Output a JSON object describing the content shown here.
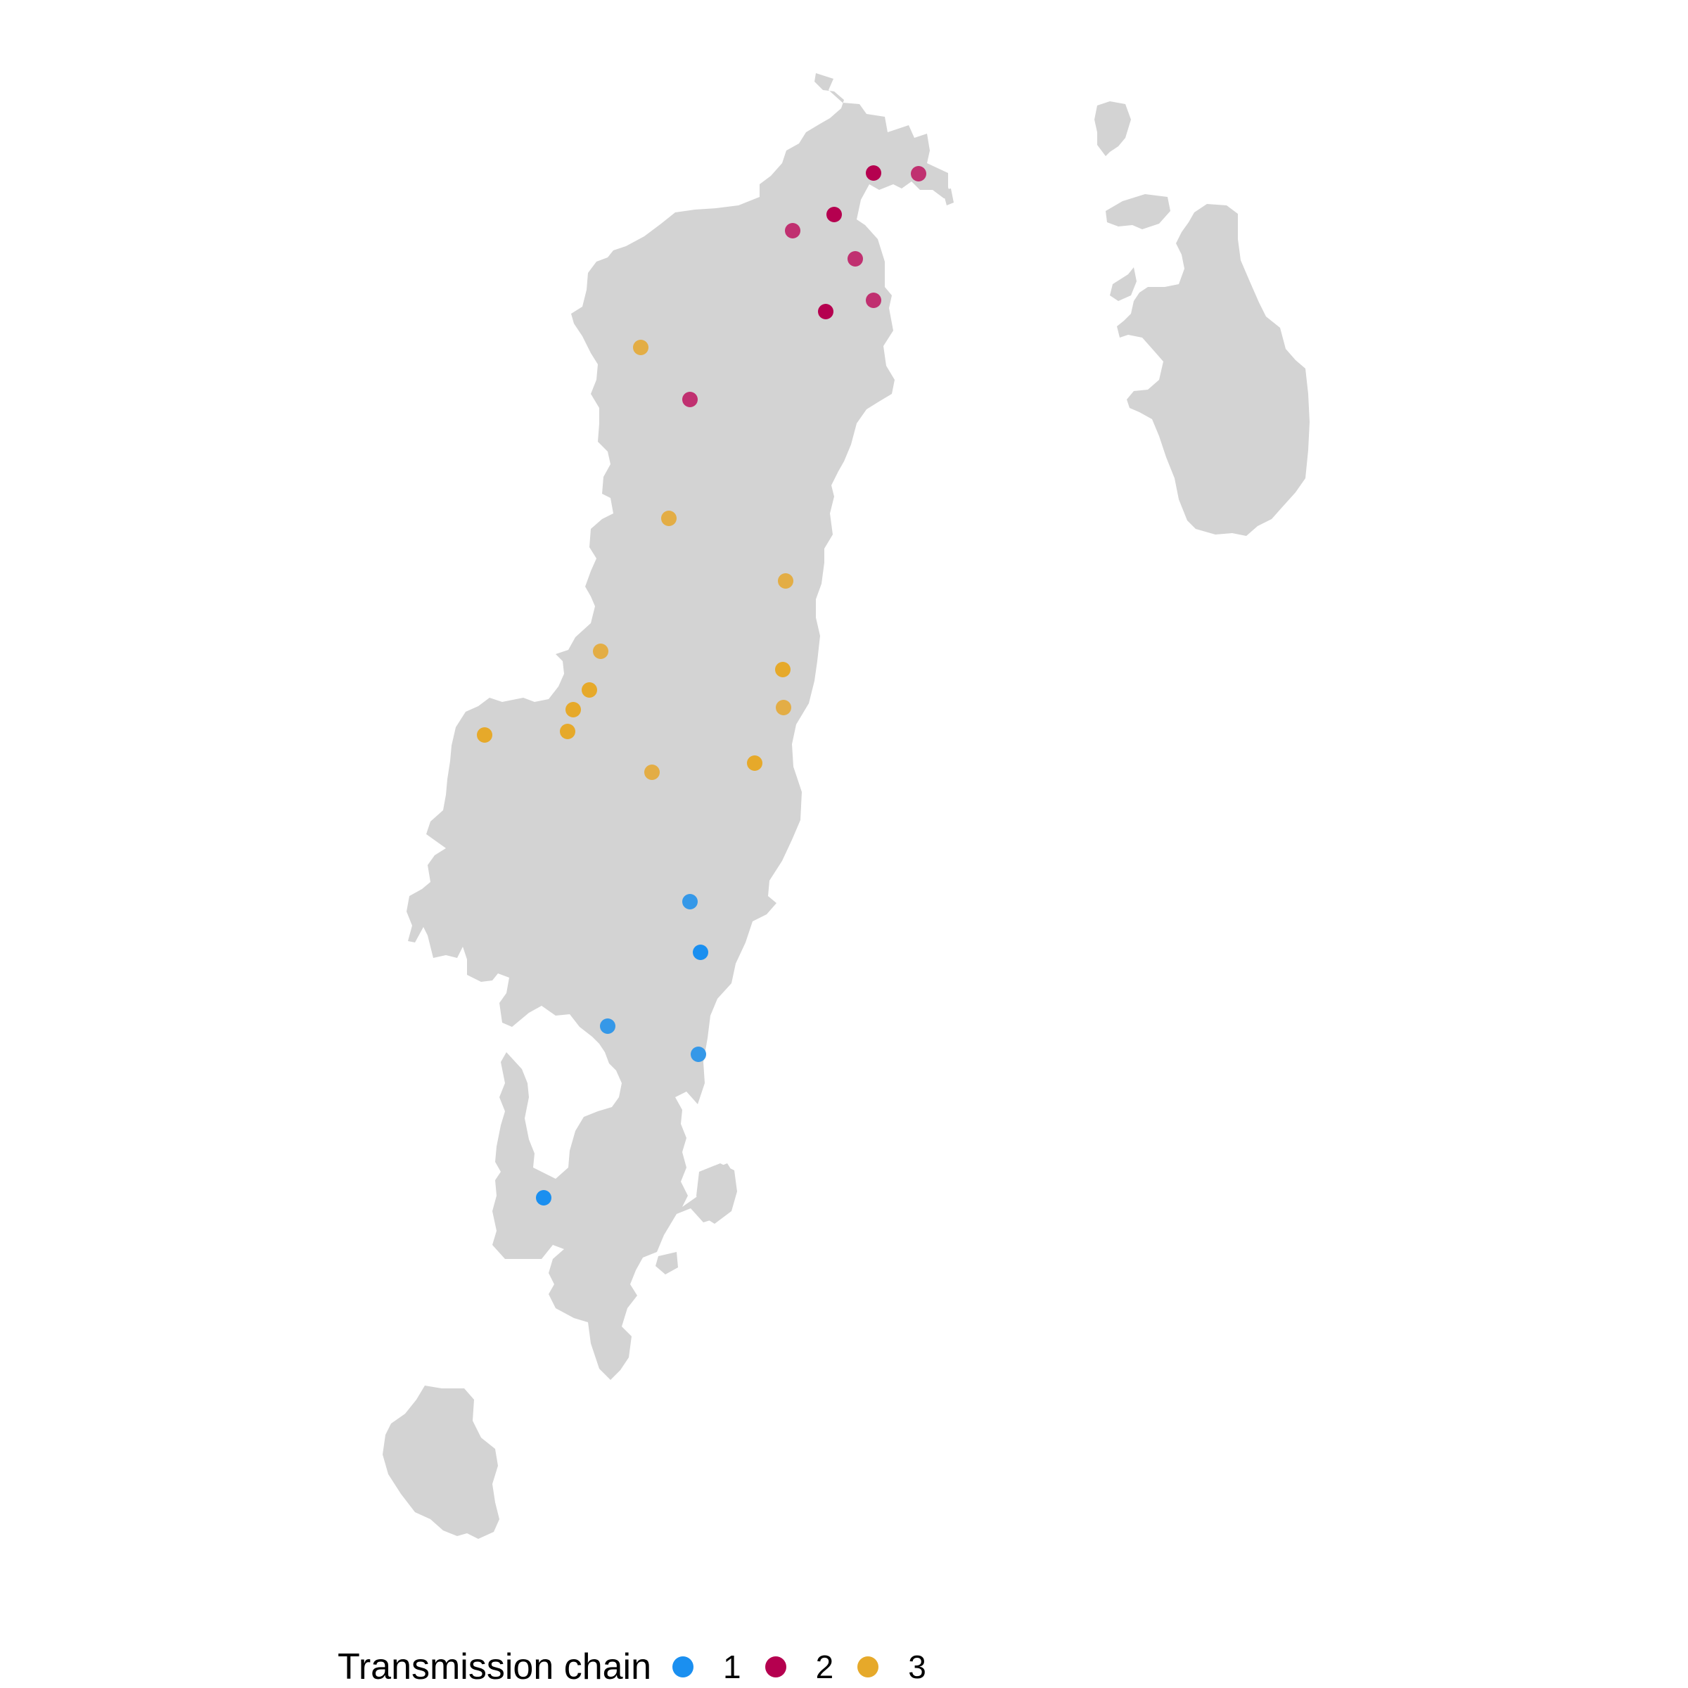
{
  "legend": {
    "title": "Transmission chain",
    "items": [
      {
        "label": "1",
        "color": "#1a8ff0"
      },
      {
        "label": "2",
        "color": "#b5004f"
      },
      {
        "label": "3",
        "color": "#e6a92a"
      }
    ]
  },
  "land_color": "#d3d3d3",
  "points": [
    {
      "chain": "2",
      "color": "#b5004f"
    },
    {
      "chain": "2",
      "color": "#c03070"
    },
    {
      "chain": "2",
      "color": "#b5004f"
    },
    {
      "chain": "2",
      "color": "#c03070"
    },
    {
      "chain": "2",
      "color": "#c03070"
    },
    {
      "chain": "2",
      "color": "#c03070"
    },
    {
      "chain": "2",
      "color": "#b5004f"
    },
    {
      "chain": "2",
      "color": "#c03070"
    },
    {
      "chain": "3",
      "color": "#e3ad45"
    },
    {
      "chain": "3",
      "color": "#e3ad45"
    },
    {
      "chain": "3",
      "color": "#e3ad45"
    },
    {
      "chain": "3",
      "color": "#e3ad45"
    },
    {
      "chain": "3",
      "color": "#e6a92a"
    },
    {
      "chain": "3",
      "color": "#e6a92a"
    },
    {
      "chain": "3",
      "color": "#e6a92a"
    },
    {
      "chain": "3",
      "color": "#e6a92a"
    },
    {
      "chain": "3",
      "color": "#e6a92a"
    },
    {
      "chain": "3",
      "color": "#e3ad45"
    },
    {
      "chain": "3",
      "color": "#e3ad45"
    },
    {
      "chain": "3",
      "color": "#e6a92a"
    },
    {
      "chain": "1",
      "color": "#3598e8"
    },
    {
      "chain": "1",
      "color": "#1a8ff0"
    },
    {
      "chain": "1",
      "color": "#3598e8"
    },
    {
      "chain": "1",
      "color": "#3598e8"
    },
    {
      "chain": "1",
      "color": "#1a8ff0"
    }
  ]
}
